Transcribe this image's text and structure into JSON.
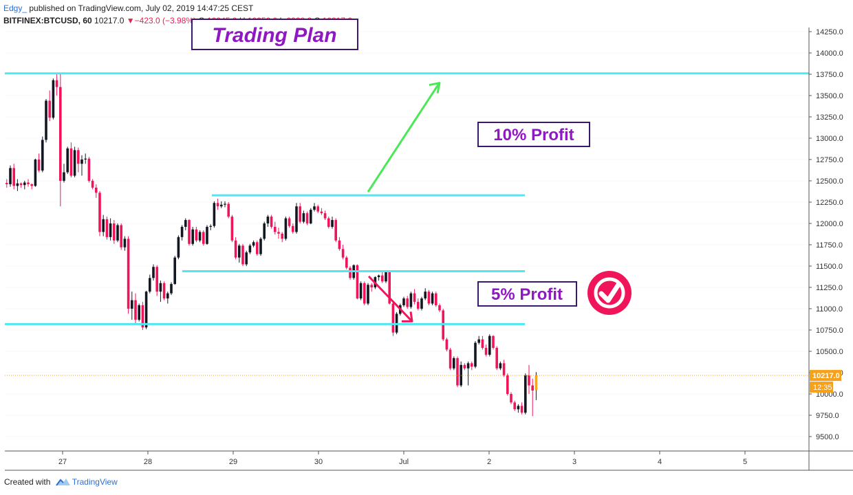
{
  "header": {
    "author": "Edgy_",
    "published_text": " published on TradingView.com, July 02, 2019 14:47:25 CEST",
    "symbol": "BITFINEX:BTCUSD, 60",
    "last": "10217.0",
    "change": "−423.0 (−3.98%)",
    "o_label": "O:",
    "o_value": "10045.0",
    "h_label": "H:",
    "h_value": "10256.0",
    "l_label": "L:",
    "l_value": "9928.2",
    "c_label": "C:",
    "c_value": "10217.0",
    "change_color": "#ee1d52"
  },
  "footer": {
    "created_with": "Created with",
    "brand": "TradingView"
  },
  "chart_data": {
    "type": "candlestick",
    "symbol": "BITFINEX:BTCUSD",
    "interval": "60",
    "x_tick_labels": [
      "27",
      "28",
      "29",
      "30",
      "Jul",
      "2",
      "3",
      "4",
      "5"
    ],
    "y_ticks": [
      9500,
      9750,
      10000,
      10250,
      10500,
      10750,
      11000,
      11250,
      11500,
      11750,
      12000,
      12250,
      12500,
      12750,
      13000,
      13250,
      13500,
      13750,
      14000,
      14250
    ],
    "ylim": [
      9300,
      14300
    ],
    "last_price": 10217.0,
    "last_price_label": "10217.0",
    "countdown_label": "12:35",
    "colors": {
      "up": "#131722",
      "down": "#f0155a",
      "up_wick": "#131722",
      "orange": "#f5a623",
      "levels": "#4de8f0",
      "accent": "#f7a11a",
      "grid": "#e6e6e6"
    },
    "levels": [
      13760,
      12330,
      11440,
      10820
    ],
    "candles": [
      [
        12475,
        12520,
        12420,
        12460
      ],
      [
        12460,
        12680,
        12430,
        12650
      ],
      [
        12650,
        12700,
        12400,
        12440
      ],
      [
        12440,
        12520,
        12380,
        12470
      ],
      [
        12470,
        12480,
        12420,
        12450
      ],
      [
        12450,
        12500,
        12400,
        12480
      ],
      [
        12480,
        12520,
        12430,
        12460
      ],
      [
        12460,
        12470,
        12400,
        12440
      ],
      [
        12440,
        12760,
        12430,
        12750
      ],
      [
        12750,
        12820,
        12600,
        12620
      ],
      [
        12620,
        13020,
        12600,
        12980
      ],
      [
        12980,
        13460,
        12950,
        13440
      ],
      [
        13440,
        13560,
        13200,
        13240
      ],
      [
        13240,
        13700,
        13220,
        13680
      ],
      [
        13680,
        13760,
        13500,
        13600
      ],
      [
        13600,
        13760,
        12200,
        12500
      ],
      [
        12500,
        12700,
        12480,
        12600
      ],
      [
        12600,
        12900,
        12580,
        12880
      ],
      [
        12880,
        12950,
        12540,
        12560
      ],
      [
        12560,
        12900,
        12540,
        12860
      ],
      [
        12860,
        12890,
        12600,
        12700
      ],
      [
        12700,
        12800,
        12560,
        12750
      ],
      [
        12750,
        12820,
        12700,
        12760
      ],
      [
        12760,
        12780,
        12480,
        12500
      ],
      [
        12500,
        12520,
        12400,
        12420
      ],
      [
        12420,
        12460,
        12300,
        12360
      ],
      [
        12360,
        12380,
        11850,
        11900
      ],
      [
        11900,
        12100,
        11850,
        12050
      ],
      [
        12050,
        12080,
        11810,
        11840
      ],
      [
        11840,
        12060,
        11800,
        12000
      ],
      [
        12000,
        12040,
        11760,
        11800
      ],
      [
        11800,
        12000,
        11780,
        11980
      ],
      [
        11980,
        12000,
        11690,
        11720
      ],
      [
        11720,
        11850,
        11680,
        11820
      ],
      [
        11820,
        11850,
        10940,
        11000
      ],
      [
        11000,
        11200,
        10870,
        11100
      ],
      [
        11100,
        11180,
        10830,
        10870
      ],
      [
        10870,
        11060,
        10850,
        11040
      ],
      [
        11040,
        11080,
        10750,
        10780
      ],
      [
        10780,
        11210,
        10760,
        11200
      ],
      [
        11200,
        11400,
        11180,
        11360
      ],
      [
        11360,
        11520,
        11330,
        11490
      ],
      [
        11490,
        11510,
        11150,
        11200
      ],
      [
        11200,
        11330,
        11080,
        11300
      ],
      [
        11300,
        11320,
        11100,
        11120
      ],
      [
        11120,
        11200,
        11060,
        11180
      ],
      [
        11180,
        11310,
        11160,
        11290
      ],
      [
        11290,
        11620,
        11280,
        11600
      ],
      [
        11600,
        11860,
        11580,
        11840
      ],
      [
        11840,
        11980,
        11800,
        11960
      ],
      [
        11960,
        12060,
        11920,
        12040
      ],
      [
        12040,
        12050,
        11740,
        11760
      ],
      [
        11760,
        11960,
        11740,
        11930
      ],
      [
        11930,
        11960,
        11780,
        11800
      ],
      [
        11800,
        11920,
        11780,
        11900
      ],
      [
        11900,
        11920,
        11740,
        11760
      ],
      [
        11760,
        11980,
        11750,
        11960
      ],
      [
        11960,
        11990,
        11920,
        11970
      ],
      [
        11970,
        12260,
        11950,
        12240
      ],
      [
        12240,
        12290,
        12160,
        12200
      ],
      [
        12200,
        12260,
        12180,
        12220
      ],
      [
        12220,
        12260,
        12190,
        12230
      ],
      [
        12230,
        12250,
        12060,
        12080
      ],
      [
        12080,
        12100,
        11780,
        11800
      ],
      [
        11800,
        11840,
        11580,
        11600
      ],
      [
        11600,
        11760,
        11540,
        11740
      ],
      [
        11740,
        11760,
        11500,
        11520
      ],
      [
        11520,
        11680,
        11500,
        11660
      ],
      [
        11660,
        11760,
        11640,
        11740
      ],
      [
        11740,
        11800,
        11720,
        11780
      ],
      [
        11780,
        11800,
        11620,
        11640
      ],
      [
        11640,
        11840,
        11620,
        11820
      ],
      [
        11820,
        12020,
        11800,
        12000
      ],
      [
        12000,
        12100,
        11960,
        12080
      ],
      [
        12080,
        12100,
        11940,
        11960
      ],
      [
        11960,
        12020,
        11870,
        11900
      ],
      [
        11900,
        11950,
        11820,
        11880
      ],
      [
        11880,
        11900,
        11780,
        11820
      ],
      [
        11820,
        12080,
        11800,
        12060
      ],
      [
        12060,
        12080,
        11950,
        11970
      ],
      [
        11970,
        12000,
        11880,
        11900
      ],
      [
        11900,
        12240,
        11880,
        12200
      ],
      [
        12200,
        12240,
        12000,
        12020
      ],
      [
        12020,
        12150,
        12000,
        12120
      ],
      [
        12120,
        12140,
        11980,
        12000
      ],
      [
        12000,
        12180,
        11990,
        12160
      ],
      [
        12160,
        12240,
        12140,
        12200
      ],
      [
        12200,
        12220,
        12120,
        12140
      ],
      [
        12140,
        12180,
        12100,
        12120
      ],
      [
        12120,
        12150,
        12040,
        12060
      ],
      [
        12060,
        12080,
        11940,
        11960
      ],
      [
        11960,
        12080,
        11940,
        12040
      ],
      [
        12040,
        12060,
        11780,
        11800
      ],
      [
        11800,
        11840,
        11680,
        11700
      ],
      [
        11700,
        11750,
        11580,
        11600
      ],
      [
        11600,
        11620,
        11460,
        11480
      ],
      [
        11480,
        11500,
        11340,
        11360
      ],
      [
        11360,
        11520,
        11340,
        11510
      ],
      [
        11510,
        11520,
        11110,
        11120
      ],
      [
        11120,
        11320,
        11100,
        11300
      ],
      [
        11300,
        11320,
        11040,
        11060
      ],
      [
        11060,
        11300,
        11040,
        11280
      ],
      [
        11280,
        11300,
        11200,
        11250
      ],
      [
        11250,
        11380,
        11230,
        11370
      ],
      [
        11370,
        11400,
        11330,
        11390
      ],
      [
        11390,
        11440,
        11300,
        11320
      ],
      [
        11320,
        11440,
        11300,
        11430
      ],
      [
        11430,
        11450,
        11050,
        11060
      ],
      [
        11060,
        11080,
        10680,
        10720
      ],
      [
        10720,
        10960,
        10700,
        10940
      ],
      [
        10940,
        11060,
        10920,
        11040
      ],
      [
        11040,
        11140,
        11020,
        11120
      ],
      [
        11120,
        11150,
        11000,
        11020
      ],
      [
        11020,
        11200,
        11000,
        11180
      ],
      [
        11180,
        11230,
        11050,
        11080
      ],
      [
        11080,
        11120,
        10980,
        11000
      ],
      [
        11000,
        11140,
        10980,
        11120
      ],
      [
        11120,
        11240,
        11100,
        11200
      ],
      [
        11200,
        11220,
        11040,
        11060
      ],
      [
        11060,
        11200,
        11040,
        11180
      ],
      [
        11180,
        11200,
        11020,
        11040
      ],
      [
        11040,
        11060,
        10960,
        10980
      ],
      [
        10980,
        11000,
        10620,
        10640
      ],
      [
        10640,
        10660,
        10500,
        10520
      ],
      [
        10520,
        10540,
        10280,
        10300
      ],
      [
        10300,
        10440,
        10280,
        10420
      ],
      [
        10420,
        10440,
        10080,
        10100
      ],
      [
        10100,
        10380,
        10080,
        10340
      ],
      [
        10340,
        10360,
        10280,
        10300
      ],
      [
        10300,
        10380,
        10100,
        10360
      ],
      [
        10360,
        10380,
        10280,
        10320
      ],
      [
        10320,
        10620,
        10300,
        10600
      ],
      [
        10600,
        10680,
        10580,
        10640
      ],
      [
        10640,
        10680,
        10520,
        10540
      ],
      [
        10540,
        10580,
        10440,
        10460
      ],
      [
        10460,
        10700,
        10440,
        10680
      ],
      [
        10680,
        10690,
        10520,
        10540
      ],
      [
        10540,
        10560,
        10280,
        10300
      ],
      [
        10300,
        10380,
        10280,
        10360
      ],
      [
        10360,
        10400,
        10200,
        10220
      ],
      [
        10220,
        10240,
        9980,
        10000
      ],
      [
        10000,
        10020,
        9880,
        9900
      ],
      [
        9900,
        9920,
        9800,
        9820
      ],
      [
        9820,
        9880,
        9780,
        9860
      ],
      [
        9860,
        9900,
        9760,
        9780
      ],
      [
        9780,
        10240,
        9760,
        10220
      ],
      [
        10220,
        10340,
        10000,
        10100
      ],
      [
        10100,
        10180,
        9740,
        10040
      ],
      [
        10045,
        10256,
        9928.2,
        10217
      ]
    ],
    "annotations": [
      {
        "type": "label",
        "text": "Trading Plan",
        "color": "#8f18c2"
      },
      {
        "type": "label",
        "text": "10% Profit",
        "color": "#8f18c2"
      },
      {
        "type": "label",
        "text": "5% Profit",
        "color": "#8f18c2"
      },
      {
        "type": "icon",
        "name": "checkmark-circle-icon",
        "color": "#f0155a"
      },
      {
        "type": "arrow",
        "color": "#4be856",
        "from_price": 12370,
        "to_price": 13640
      },
      {
        "type": "arrow",
        "color": "#f0155a",
        "from_price": 11380,
        "to_price": 10860
      }
    ]
  }
}
